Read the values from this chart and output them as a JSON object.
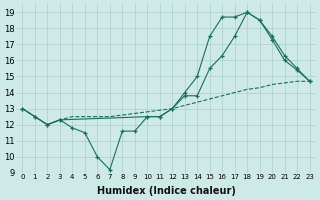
{
  "xlabel": "Humidex (Indice chaleur)",
  "bg_color": "#cdeae6",
  "grid_color": "#aacfcb",
  "line_color": "#1a6e62",
  "xlim": [
    -0.5,
    23.5
  ],
  "ylim": [
    9,
    19.5
  ],
  "xticks": [
    0,
    1,
    2,
    3,
    4,
    5,
    6,
    7,
    8,
    9,
    10,
    11,
    12,
    13,
    14,
    15,
    16,
    17,
    18,
    19,
    20,
    21,
    22,
    23
  ],
  "yticks": [
    9,
    10,
    11,
    12,
    13,
    14,
    15,
    16,
    17,
    18,
    19
  ],
  "line1_x": [
    0,
    1,
    2,
    3,
    4,
    5,
    6,
    7,
    8,
    9,
    10,
    11,
    12,
    13,
    14,
    15,
    16,
    17,
    18,
    19,
    20,
    21,
    22,
    23
  ],
  "line1_y": [
    13.0,
    12.5,
    12.0,
    12.3,
    11.8,
    11.5,
    10.0,
    9.2,
    11.6,
    11.6,
    12.5,
    12.5,
    13.0,
    13.8,
    13.8,
    15.5,
    16.3,
    17.5,
    19.0,
    18.5,
    17.3,
    16.0,
    15.4,
    14.7
  ],
  "line2_x": [
    0,
    1,
    2,
    3,
    10,
    11,
    12,
    13,
    14,
    15,
    16,
    17,
    18,
    19,
    20,
    21,
    22,
    23
  ],
  "line2_y": [
    13.0,
    12.5,
    12.0,
    12.3,
    12.5,
    12.5,
    13.0,
    14.0,
    15.0,
    17.5,
    18.7,
    18.7,
    19.0,
    18.5,
    17.5,
    16.3,
    15.5,
    14.7
  ],
  "line3_x": [
    0,
    1,
    2,
    3,
    4,
    5,
    6,
    7,
    8,
    9,
    10,
    11,
    12,
    13,
    14,
    15,
    16,
    17,
    18,
    19,
    20,
    21,
    22,
    23
  ],
  "line3_y": [
    13.0,
    12.5,
    12.0,
    12.3,
    12.5,
    12.5,
    12.5,
    12.5,
    12.6,
    12.7,
    12.8,
    12.9,
    13.0,
    13.2,
    13.4,
    13.6,
    13.8,
    14.0,
    14.2,
    14.3,
    14.5,
    14.6,
    14.7,
    14.7
  ]
}
